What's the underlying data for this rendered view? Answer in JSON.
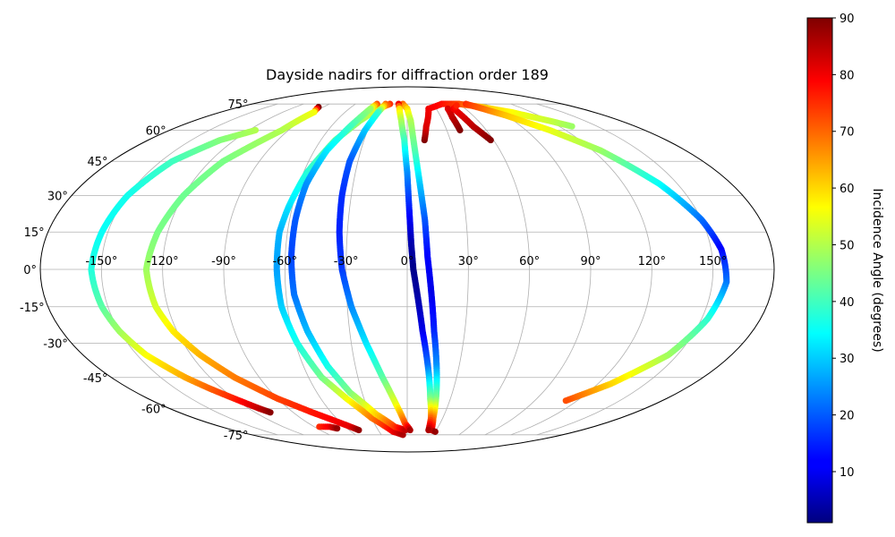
{
  "chart_data": {
    "type": "scatter",
    "projection": "mollweide",
    "title": "Dayside nadirs for diffraction order 189",
    "colorbar": {
      "label": "Incidence Angle (degrees)",
      "range": [
        1,
        90
      ],
      "ticks": [
        10,
        20,
        30,
        40,
        50,
        60,
        70,
        80,
        90
      ],
      "colormap": "jet"
    },
    "lon_ticks": [
      "-150°",
      "-120°",
      "-90°",
      "-60°",
      "-30°",
      "0°",
      "30°",
      "60°",
      "90°",
      "120°",
      "150°"
    ],
    "lat_ticks": [
      "75°",
      "60°",
      "45°",
      "30°",
      "15°",
      "0°",
      "-15°",
      "-30°",
      "-45°",
      "-60°",
      "-75°"
    ],
    "grid": true,
    "series": [
      {
        "points": [
          [
            -115,
            60,
            50
          ],
          [
            -130,
            55,
            46
          ],
          [
            -143,
            45,
            40
          ],
          [
            -150,
            30,
            36
          ],
          [
            -153,
            15,
            35
          ],
          [
            -155,
            0,
            37
          ],
          [
            -153,
            -15,
            42
          ],
          [
            -150,
            -25,
            48
          ],
          [
            -145,
            -35,
            56
          ],
          [
            -135,
            -45,
            64
          ],
          [
            -128,
            -50,
            70
          ],
          [
            -120,
            -55,
            76
          ],
          [
            -112,
            -60,
            84
          ],
          [
            -108,
            -62,
            89
          ]
        ]
      },
      {
        "points": [
          [
            -95,
            73,
            90
          ],
          [
            -90,
            70,
            56
          ],
          [
            -95,
            60,
            50
          ],
          [
            -112,
            45,
            45
          ],
          [
            -120,
            30,
            44
          ],
          [
            -125,
            15,
            45
          ],
          [
            -128,
            0,
            48
          ],
          [
            -126,
            -15,
            53
          ],
          [
            -122,
            -25,
            58
          ],
          [
            -115,
            -35,
            63
          ],
          [
            -105,
            -45,
            68
          ],
          [
            -90,
            -55,
            73
          ],
          [
            -75,
            -62,
            77
          ],
          [
            -55,
            -70,
            81
          ],
          [
            -50,
            -72,
            88
          ]
        ]
      },
      {
        "points": [
          [
            -20,
            75,
            75
          ],
          [
            -30,
            72,
            55
          ],
          [
            -40,
            65,
            48
          ],
          [
            -50,
            55,
            43
          ],
          [
            -58,
            40,
            38
          ],
          [
            -62,
            25,
            32
          ],
          [
            -64,
            15,
            28
          ],
          [
            -64,
            0,
            26
          ],
          [
            -63,
            -15,
            30
          ],
          [
            -59,
            -30,
            36
          ],
          [
            -52,
            -45,
            44
          ],
          [
            -42,
            -55,
            55
          ],
          [
            -30,
            -65,
            68
          ],
          [
            -15,
            -73,
            80
          ],
          [
            -5,
            -75,
            86
          ]
        ]
      },
      {
        "points": [
          [
            -35,
            75,
            72
          ],
          [
            -38,
            72,
            48
          ],
          [
            -45,
            62,
            40
          ],
          [
            -52,
            50,
            33
          ],
          [
            -56,
            35,
            25
          ],
          [
            -57,
            20,
            20
          ],
          [
            -57,
            5,
            18
          ],
          [
            -56,
            -10,
            22
          ],
          [
            -52,
            -25,
            28
          ],
          [
            -46,
            -40,
            36
          ],
          [
            -38,
            -52,
            45
          ],
          [
            -25,
            -63,
            60
          ],
          [
            -12,
            -70,
            74
          ],
          [
            -2,
            -72,
            84
          ]
        ]
      },
      {
        "points": [
          [
            -25,
            75,
            70
          ],
          [
            -28,
            70,
            40
          ],
          [
            -32,
            60,
            30
          ],
          [
            -35,
            45,
            20
          ],
          [
            -35,
            30,
            16
          ],
          [
            -34,
            15,
            15
          ],
          [
            -32,
            0,
            17
          ],
          [
            -28,
            -15,
            24
          ],
          [
            -22,
            -30,
            32
          ],
          [
            -15,
            -45,
            42
          ],
          [
            -8,
            -58,
            55
          ],
          [
            -2,
            -68,
            72
          ],
          [
            3,
            -72,
            86
          ]
        ]
      },
      {
        "points": [
          [
            -5,
            75,
            70
          ],
          [
            0,
            72,
            60
          ],
          [
            3,
            65,
            50
          ],
          [
            5,
            50,
            42
          ],
          [
            7,
            35,
            30
          ],
          [
            9,
            20,
            20
          ],
          [
            10,
            5,
            12
          ],
          [
            12,
            -10,
            10
          ],
          [
            14,
            -25,
            15
          ],
          [
            17,
            -40,
            25
          ],
          [
            20,
            -55,
            45
          ],
          [
            22,
            -65,
            68
          ],
          [
            25,
            -72,
            82
          ],
          [
            30,
            -73,
            88
          ]
        ]
      },
      {
        "points": [
          [
            -10,
            75,
            80
          ],
          [
            -8,
            72,
            60
          ],
          [
            -5,
            65,
            50
          ],
          [
            -2,
            55,
            40
          ],
          [
            0,
            40,
            25
          ],
          [
            1,
            25,
            15
          ],
          [
            2,
            10,
            5
          ],
          [
            3,
            0,
            2
          ],
          [
            5,
            -10,
            4
          ],
          [
            8,
            -25,
            10
          ],
          [
            12,
            -40,
            22
          ],
          [
            16,
            -55,
            45
          ],
          [
            20,
            -65,
            70
          ],
          [
            22,
            -72,
            86
          ]
        ]
      },
      {
        "points": [
          [
            12,
            55,
            90
          ],
          [
            15,
            62,
            82
          ],
          [
            22,
            72,
            80
          ],
          [
            40,
            75,
            78
          ],
          [
            60,
            75,
            73
          ],
          [
            80,
            73,
            62
          ],
          [
            100,
            70,
            57
          ],
          [
            120,
            65,
            52
          ],
          [
            130,
            62,
            48
          ]
        ]
      },
      {
        "points": [
          [
            40,
            60,
            90
          ],
          [
            40,
            67,
            85
          ],
          [
            42,
            72,
            82
          ]
        ]
      },
      {
        "points": [
          [
            58,
            55,
            90
          ],
          [
            52,
            62,
            85
          ],
          [
            48,
            72,
            80
          ],
          [
            55,
            74,
            76
          ]
        ]
      },
      {
        "points": [
          [
            68,
            75,
            75
          ],
          [
            78,
            72,
            70
          ],
          [
            90,
            68,
            62
          ],
          [
            108,
            60,
            55
          ],
          [
            125,
            50,
            48
          ],
          [
            140,
            35,
            35
          ],
          [
            150,
            20,
            22
          ],
          [
            155,
            8,
            12
          ],
          [
            157,
            -5,
            22
          ],
          [
            153,
            -20,
            38
          ],
          [
            145,
            -35,
            48
          ],
          [
            128,
            -48,
            60
          ],
          [
            112,
            -56,
            72
          ]
        ]
      },
      {
        "points": [
          [
            -85,
            -70,
            75
          ],
          [
            -75,
            -70,
            80
          ],
          [
            -70,
            -71,
            88
          ]
        ]
      }
    ]
  }
}
